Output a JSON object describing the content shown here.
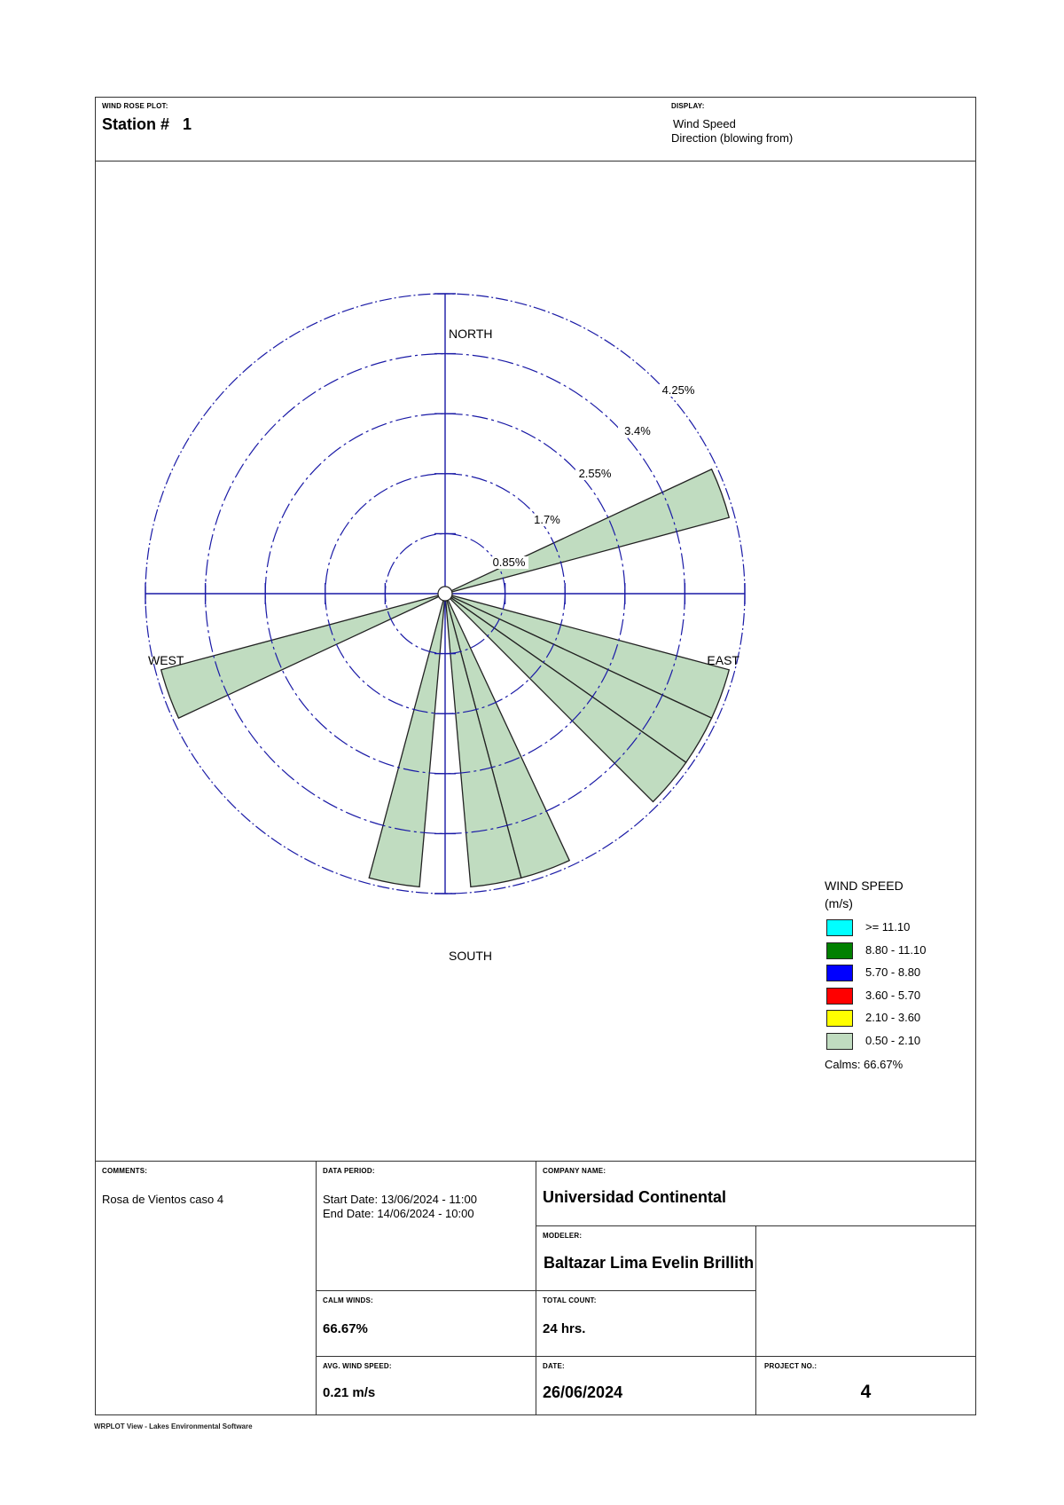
{
  "header": {
    "plot_label": "WIND ROSE PLOT:",
    "station_prefix": "Station #",
    "station_number": "1",
    "display_label": "DISPLAY:",
    "display_line1": "Wind Speed",
    "display_line2": "Direction (blowing from)"
  },
  "compass": {
    "north": "NORTH",
    "south": "SOUTH",
    "east": "EAST",
    "west": "WEST"
  },
  "ring_labels": [
    "0.85%",
    "1.7%",
    "2.55%",
    "3.4%",
    "4.25%"
  ],
  "legend": {
    "title": "WIND SPEED",
    "units": "(m/s)",
    "classes": [
      {
        "label": ">= 11.10",
        "color": "#00ffff"
      },
      {
        "label": "8.80 - 11.10",
        "color": "#008000"
      },
      {
        "label": "5.70 - 8.80",
        "color": "#0000ff"
      },
      {
        "label": "3.60 - 5.70",
        "color": "#ff0000"
      },
      {
        "label": "2.10 - 3.60",
        "color": "#ffff00"
      },
      {
        "label": "0.50 - 2.10",
        "color": "#c0dcc0"
      }
    ],
    "calms": "Calms: 66.67%"
  },
  "info": {
    "comments_label": "COMMENTS:",
    "comments": "Rosa de Vientos caso 4",
    "data_period_label": "DATA PERIOD:",
    "start_date": "Start Date: 13/06/2024 - 11:00",
    "end_date": "End Date: 14/06/2024 - 10:00",
    "company_label": "COMPANY NAME:",
    "company": "Universidad Continental",
    "modeler_label": "MODELER:",
    "modeler": "Baltazar Lima Evelin Brillith",
    "calm_winds_label": "CALM WINDS:",
    "calm_winds": "66.67%",
    "total_count_label": "TOTAL COUNT:",
    "total_count": "24 hrs.",
    "avg_speed_label": "AVG. WIND SPEED:",
    "avg_speed": "0.21 m/s",
    "date_label": "DATE:",
    "date": "26/06/2024",
    "project_label": "PROJECT NO.:",
    "project": "4"
  },
  "footer": "WRPLOT View - Lakes Environmental Software",
  "colors": {
    "grid": "#1a1aa6",
    "petal_fill": "#c0dcc0",
    "petal_stroke": "#222222"
  },
  "chart_data": {
    "type": "wind_rose",
    "title": "Station # 1",
    "direction_convention": "blowing from",
    "sector_width_deg": 10,
    "radial_ticks_percent": [
      0.85,
      1.7,
      2.55,
      3.4,
      4.25
    ],
    "radial_max_percent": 4.25,
    "speed_classes_ms": [
      ">= 11.10",
      "8.80 - 11.10",
      "5.70 - 8.80",
      "3.60 - 5.70",
      "2.10 - 3.60",
      "0.50 - 2.10"
    ],
    "petals": [
      {
        "direction_deg": 70,
        "class": "0.50 - 2.10",
        "frequency_percent": 4.17
      },
      {
        "direction_deg": 110,
        "class": "0.50 - 2.10",
        "frequency_percent": 4.17
      },
      {
        "direction_deg": 120,
        "class": "0.50 - 2.10",
        "frequency_percent": 4.17
      },
      {
        "direction_deg": 130,
        "class": "0.50 - 2.10",
        "frequency_percent": 4.17
      },
      {
        "direction_deg": 160,
        "class": "0.50 - 2.10",
        "frequency_percent": 4.17
      },
      {
        "direction_deg": 170,
        "class": "0.50 - 2.10",
        "frequency_percent": 4.17
      },
      {
        "direction_deg": 190,
        "class": "0.50 - 2.10",
        "frequency_percent": 4.17
      },
      {
        "direction_deg": 250,
        "class": "0.50 - 2.10",
        "frequency_percent": 4.17
      }
    ],
    "calms_percent": 66.67,
    "total_count_hrs": 24,
    "avg_wind_speed_ms": 0.21
  }
}
